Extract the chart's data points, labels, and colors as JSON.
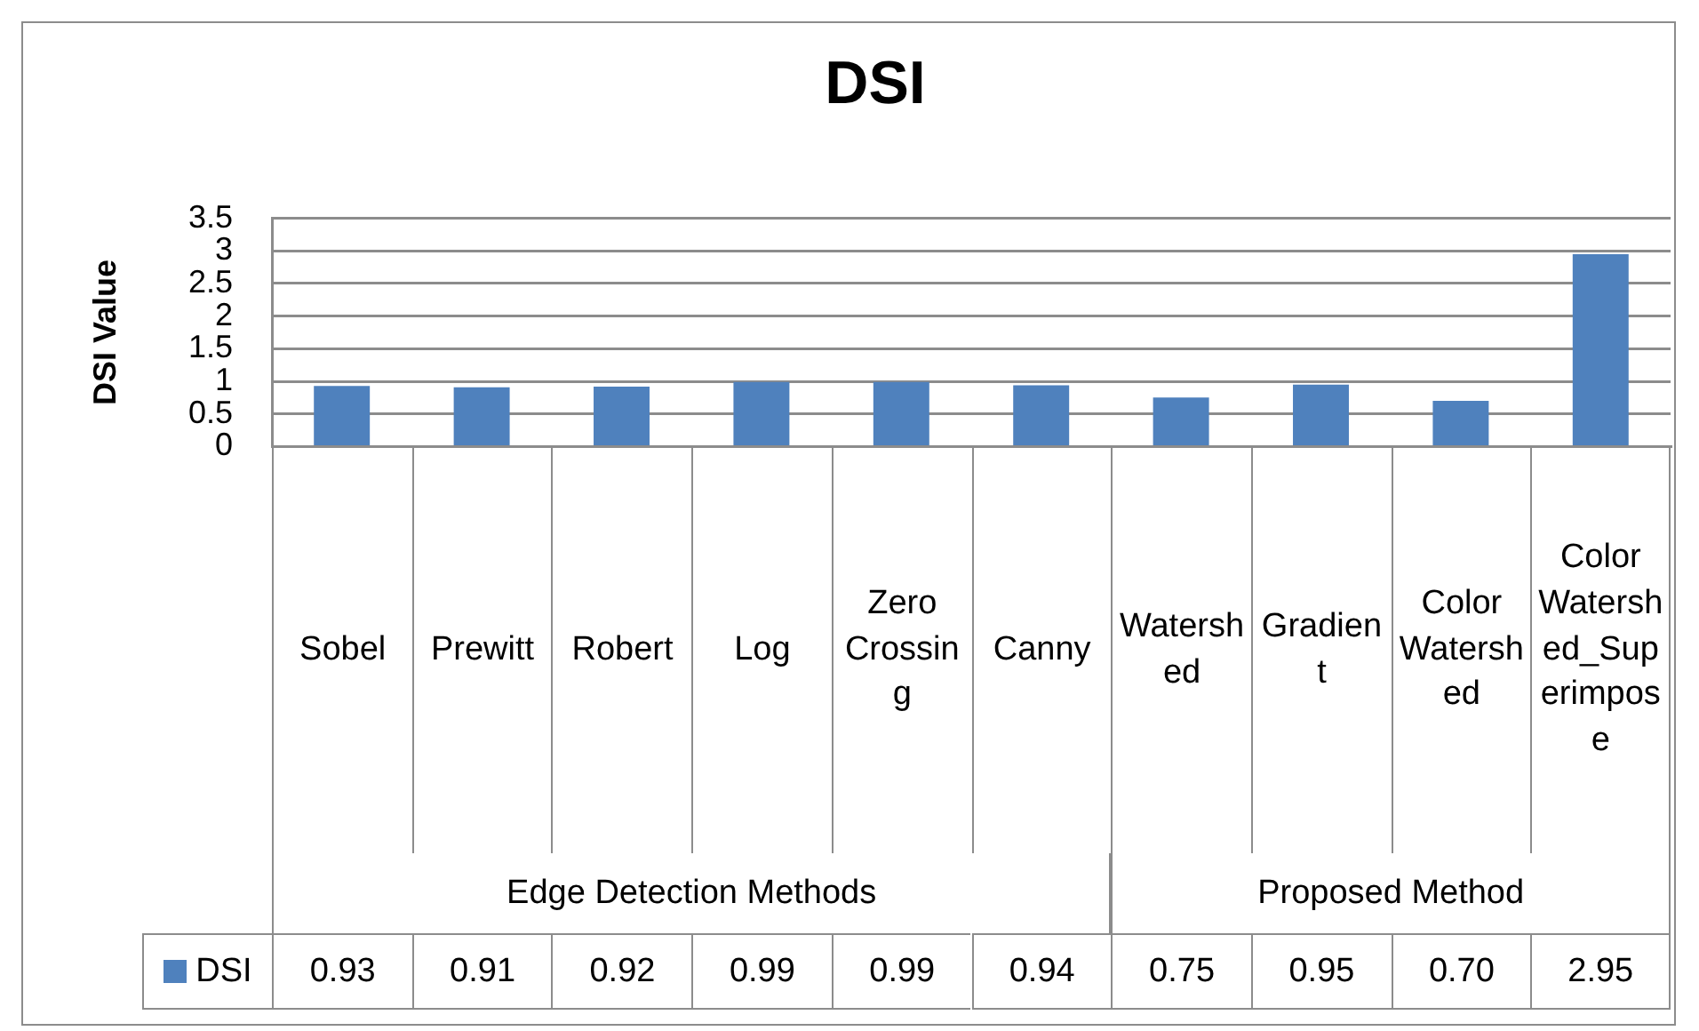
{
  "chart_data": {
    "type": "bar",
    "title": "DSI",
    "ylabel": "DSI Value",
    "categories": [
      "Sobel",
      "Prewitt",
      "Robert",
      "Log",
      "Zero Crossing",
      "Canny",
      "Watershed",
      "Gradient",
      "Color Watershed",
      "Color Watershed_Superimpose"
    ],
    "series": [
      {
        "name": "DSI",
        "color": "#4f81bd",
        "values": [
          0.93,
          0.91,
          0.92,
          0.99,
          0.99,
          0.94,
          0.75,
          0.95,
          0.7,
          2.95
        ],
        "value_labels": [
          "0.93",
          "0.91",
          "0.92",
          "0.99",
          "0.99",
          "0.94",
          "0.75",
          "0.95",
          "0.70",
          "2.95"
        ]
      }
    ],
    "ylim": [
      0,
      3.5
    ],
    "yticks": [
      0,
      0.5,
      1,
      1.5,
      2,
      2.5,
      3,
      3.5
    ],
    "grid": "y",
    "legend": "bottom",
    "annotations": [
      "Edge Detection Methods",
      "Proposed Method"
    ]
  }
}
